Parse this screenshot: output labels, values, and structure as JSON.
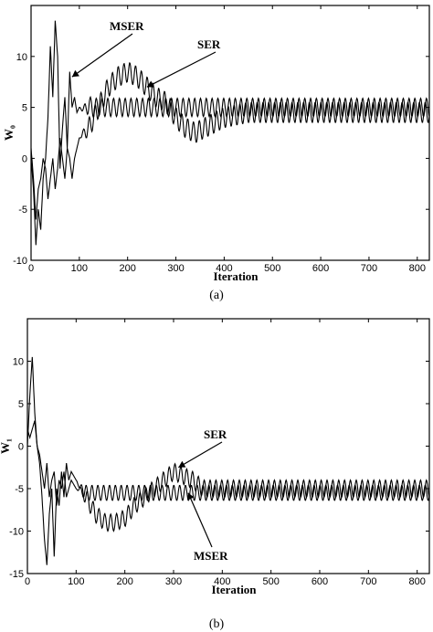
{
  "chart_data": [
    {
      "type": "line",
      "caption": "(a)",
      "xlabel": "Iteration",
      "ylabel": "W₀",
      "xlim": [
        0,
        825
      ],
      "ylim": [
        -10,
        15
      ],
      "xticks": [
        0,
        100,
        200,
        300,
        400,
        500,
        600,
        700,
        800
      ],
      "yticks": [
        -10,
        -5,
        0,
        5,
        10
      ],
      "grid": false,
      "series": [
        {
          "name": "MSER",
          "x": [
            0,
            5,
            10,
            15,
            20,
            25,
            30,
            35,
            40,
            45,
            50,
            55,
            60,
            65,
            70,
            75,
            80,
            85,
            90,
            95,
            100,
            110,
            120,
            130,
            140,
            150,
            175,
            200,
            250,
            300,
            350,
            400,
            450,
            500,
            550,
            600,
            650,
            700,
            750,
            800,
            825
          ],
          "y": [
            0,
            -3,
            -8.5,
            -5,
            -7,
            -2,
            0,
            4,
            11,
            6,
            13.5,
            10,
            -1,
            3,
            6,
            1,
            8.5,
            5,
            6,
            4.5,
            5,
            4.8,
            5.2,
            4.9,
            5.1,
            5,
            5,
            5,
            5,
            5,
            5,
            5,
            5,
            5,
            5,
            5,
            5,
            5,
            5,
            5,
            5
          ],
          "oscillation": {
            "period": 12,
            "amplitude": 0.9,
            "from": 100
          }
        },
        {
          "name": "SER",
          "x": [
            0,
            5,
            10,
            15,
            20,
            25,
            30,
            35,
            40,
            45,
            50,
            55,
            60,
            65,
            70,
            75,
            80,
            85,
            90,
            95,
            100,
            120,
            140,
            160,
            180,
            200,
            220,
            240,
            260,
            280,
            300,
            320,
            340,
            360,
            380,
            400,
            450,
            500,
            550,
            600,
            650,
            700,
            750,
            800,
            825
          ],
          "y": [
            1,
            -2,
            -6,
            -3,
            -2,
            0,
            -1,
            -4,
            -2,
            0,
            -3,
            -1,
            2,
            0,
            -2,
            1,
            0,
            -2,
            0,
            1,
            2,
            3,
            5,
            7,
            8,
            8.5,
            8,
            7,
            6,
            5.5,
            4,
            3,
            2.5,
            3,
            3.5,
            4,
            4.5,
            4.5,
            4.5,
            4.5,
            4.5,
            4.5,
            4.5,
            4.5,
            4.5
          ],
          "oscillation": {
            "period": 12,
            "amplitude": 1.0,
            "from": 100
          }
        }
      ],
      "annotations": [
        {
          "text": "MSER",
          "points_to_x": 85,
          "points_to_y": 8
        },
        {
          "text": "SER",
          "points_to_x": 240,
          "points_to_y": 7
        }
      ]
    },
    {
      "type": "line",
      "caption": "(b)",
      "xlabel": "Iteration",
      "ylabel": "W₁",
      "xlim": [
        0,
        825
      ],
      "ylim": [
        -15,
        15
      ],
      "xticks": [
        0,
        100,
        200,
        300,
        400,
        500,
        600,
        700,
        800
      ],
      "yticks": [
        -15,
        -10,
        -5,
        0,
        5,
        10
      ],
      "grid": false,
      "series": [
        {
          "name": "SER",
          "x": [
            0,
            5,
            10,
            15,
            20,
            25,
            30,
            35,
            40,
            45,
            50,
            55,
            60,
            65,
            70,
            75,
            80,
            85,
            90,
            100,
            120,
            140,
            160,
            180,
            200,
            220,
            240,
            260,
            280,
            300,
            320,
            340,
            360,
            400,
            450,
            500,
            550,
            600,
            650,
            700,
            750,
            800,
            825
          ],
          "y": [
            0,
            6,
            10.5,
            4,
            0,
            -2,
            -6,
            -11,
            -14,
            -8,
            -5,
            -13,
            -5,
            -7,
            -3,
            -6,
            -2,
            -4,
            -3,
            -4,
            -6,
            -8,
            -9,
            -9,
            -8.5,
            -7,
            -6,
            -5,
            -4,
            -3,
            -3.5,
            -4,
            -5,
            -5,
            -5,
            -5,
            -5,
            -5,
            -5,
            -5,
            -5,
            -5,
            -5
          ],
          "oscillation": {
            "period": 12,
            "amplitude": 1.0,
            "from": 100
          }
        },
        {
          "name": "MSER",
          "x": [
            0,
            5,
            10,
            15,
            20,
            25,
            30,
            35,
            40,
            45,
            50,
            55,
            60,
            65,
            70,
            75,
            80,
            85,
            90,
            100,
            120,
            140,
            160,
            180,
            200,
            250,
            300,
            350,
            400,
            450,
            500,
            550,
            600,
            650,
            700,
            750,
            800,
            825
          ],
          "y": [
            2,
            1,
            2,
            3,
            0,
            -1,
            -3,
            -5,
            -2,
            -6,
            -4,
            -3,
            -7,
            -4,
            -5,
            -3,
            -6,
            -5,
            -4,
            -5,
            -5.5,
            -5.5,
            -5.5,
            -5.5,
            -5.5,
            -5.5,
            -5.5,
            -5.5,
            -5.5,
            -5.5,
            -5.5,
            -5.5,
            -5.5,
            -5.5,
            -5.5,
            -5.5,
            -5.5,
            -5.5
          ],
          "oscillation": {
            "period": 12,
            "amplitude": 0.9,
            "from": 100
          }
        }
      ],
      "annotations": [
        {
          "text": "SER",
          "points_to_x": 310,
          "points_to_y": -2.5
        },
        {
          "text": "MSER",
          "points_to_x": 330,
          "points_to_y": -5.5
        }
      ]
    }
  ]
}
